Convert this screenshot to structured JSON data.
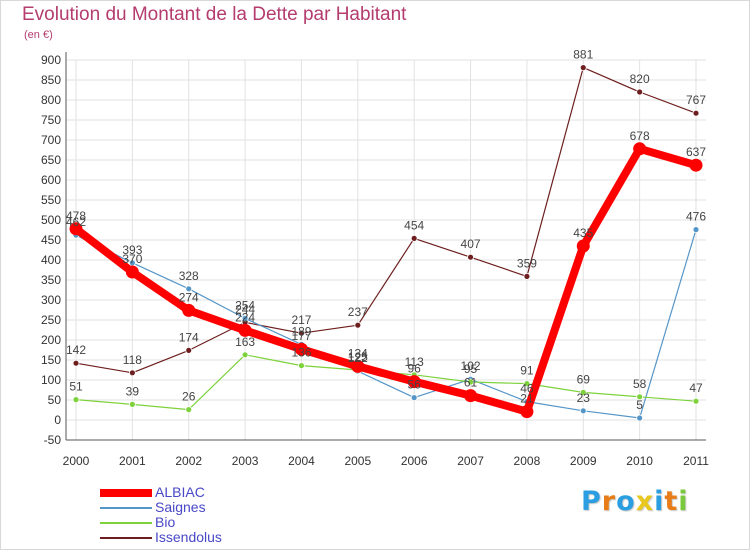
{
  "chart_data": {
    "type": "line",
    "title": "Evolution du Montant de la Dette par Habitant",
    "subtitle": "(en €)",
    "x": [
      "2000",
      "2001",
      "2002",
      "2003",
      "2004",
      "2005",
      "2006",
      "2007",
      "2008",
      "2009",
      "2010",
      "2011"
    ],
    "ylim": [
      -50,
      900
    ],
    "yticks": [
      -50,
      0,
      50,
      100,
      150,
      200,
      250,
      300,
      350,
      400,
      450,
      500,
      550,
      600,
      650,
      700,
      750,
      800,
      850,
      900
    ],
    "grid": true,
    "legend_position": "bottom-left",
    "series": [
      {
        "name": "ALBIAC",
        "color": "#ff0000",
        "values": [
          478,
          370,
          274,
          224,
          177,
          134,
          96,
          61,
          21,
          435,
          678,
          637
        ]
      },
      {
        "name": "Saignes",
        "color": "#5596c8",
        "values": [
          462,
          393,
          328,
          254,
          189,
          122,
          56,
          102,
          46,
          23,
          5,
          476
        ]
      },
      {
        "name": "Bio",
        "color": "#7dd23c",
        "values": [
          51,
          39,
          26,
          163,
          136,
          125,
          113,
          95,
          91,
          69,
          58,
          47
        ]
      },
      {
        "name": "Issendolus",
        "color": "#6e1e1e",
        "values": [
          142,
          118,
          174,
          244,
          217,
          237,
          454,
          407,
          359,
          881,
          820,
          767
        ]
      }
    ]
  },
  "logo": {
    "letters": [
      "P",
      "r",
      "o",
      "x",
      "i",
      "t",
      "i"
    ],
    "colors": [
      "#2a9ee0",
      "#e87c18",
      "#2a9ee0",
      "#e8c81e",
      "#2a9ee0",
      "#e87c18",
      "#7ac83c"
    ]
  }
}
